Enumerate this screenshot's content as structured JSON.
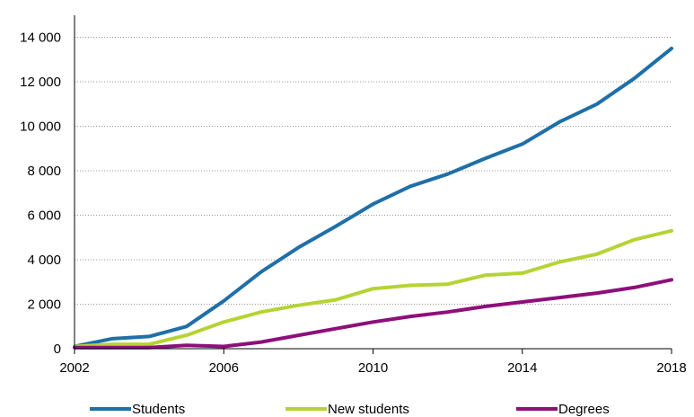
{
  "chart_data": {
    "type": "line",
    "title": "",
    "xlabel": "",
    "ylabel": "",
    "x": [
      2002,
      2003,
      2004,
      2005,
      2006,
      2007,
      2008,
      2009,
      2010,
      2011,
      2012,
      2013,
      2014,
      2015,
      2016,
      2017,
      2018
    ],
    "xlim": [
      2002,
      2018
    ],
    "ylim": [
      0,
      15000
    ],
    "x_ticks": [
      2002,
      2006,
      2010,
      2014,
      2018
    ],
    "x_tick_labels": [
      "2002",
      "2006",
      "2010",
      "2014",
      "2018"
    ],
    "y_ticks": [
      0,
      2000,
      4000,
      6000,
      8000,
      10000,
      12000,
      14000
    ],
    "y_tick_labels": [
      "0",
      "2 000",
      "4 000",
      "6 000",
      "8 000",
      "10 000",
      "12 000",
      "14 000"
    ],
    "grid": "horizontal dotted",
    "legend_position": "bottom",
    "series": [
      {
        "name": "Students",
        "color": "#1f6fa8",
        "values": [
          100,
          450,
          550,
          1000,
          2150,
          3450,
          4550,
          5500,
          6500,
          7300,
          7850,
          8550,
          9200,
          10200,
          11000,
          12150,
          13500
        ]
      },
      {
        "name": "New students",
        "color": "#b5d334",
        "values": [
          100,
          200,
          200,
          600,
          1200,
          1650,
          1950,
          2200,
          2700,
          2850,
          2900,
          3300,
          3400,
          3900,
          4250,
          4900,
          5300
        ]
      },
      {
        "name": "Degrees",
        "color": "#8e0f7a",
        "values": [
          50,
          50,
          50,
          150,
          100,
          300,
          600,
          900,
          1200,
          1450,
          1650,
          1900,
          2100,
          2300,
          2500,
          2750,
          3100
        ]
      }
    ]
  }
}
